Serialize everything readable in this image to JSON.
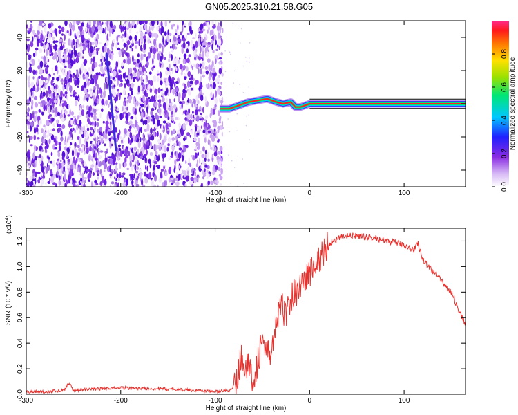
{
  "title": "GN05.2025.310.21.58.G05",
  "colors": {
    "snr_line": "#e8302c",
    "frame": "#000000",
    "background": "#ffffff"
  },
  "chart_data": [
    {
      "type": "heatmap",
      "xlabel": "Height of straight line (km)",
      "ylabel": "Frequency (Hz)",
      "xlim": [
        -300,
        165
      ],
      "ylim": [
        -50,
        50
      ],
      "xticks": [
        "-300",
        "-200",
        "-100",
        "0",
        "100"
      ],
      "yticks": [
        "-40",
        "-20",
        "0",
        "20",
        "40"
      ],
      "colorbar": {
        "label": "Normalized spectral amplitude",
        "range": [
          0,
          1
        ],
        "ticks": [
          "0.0",
          "0.2",
          "0.4",
          "0.6",
          "0.8"
        ],
        "colormap": "rainbow (white → violet → blue → cyan → green → yellow → red → magenta)"
      },
      "features": {
        "noise_region_x": [
          -300,
          -92
        ],
        "noise_region_y": [
          -50,
          50
        ],
        "diagonal_streak": {
          "from": [
            -215,
            30
          ],
          "to": [
            -205,
            -28
          ]
        },
        "signal_ridge_points": [
          [
            -95,
            -3
          ],
          [
            -85,
            -3
          ],
          [
            -75,
            -1
          ],
          [
            -65,
            1
          ],
          [
            -55,
            2
          ],
          [
            -45,
            3
          ],
          [
            -35,
            1
          ],
          [
            -28,
            0
          ],
          [
            -20,
            1
          ],
          [
            -15,
            -2
          ],
          [
            -10,
            -2
          ],
          [
            -5,
            -1
          ],
          [
            0,
            0
          ],
          [
            10,
            0
          ],
          [
            50,
            0
          ],
          [
            100,
            0
          ],
          [
            165,
            0
          ]
        ]
      }
    },
    {
      "type": "line",
      "xlabel": "Height of straight line (km)",
      "ylabel": "SNR (10 * v/v)",
      "multiplier_label": "(x10",
      "multiplier_exp": "4",
      "xlim": [
        -300,
        165
      ],
      "ylim": [
        0,
        1.3
      ],
      "xticks": [
        "-300",
        "-200",
        "-100",
        "0",
        "100"
      ],
      "yticks": [
        "0.0",
        "0.2",
        "0.4",
        "0.6",
        "0.8",
        "1.0",
        "1.2"
      ],
      "series": [
        {
          "x": [
            -300,
            -280,
            -260,
            -255,
            -250,
            -230,
            -200,
            -150,
            -120,
            -100,
            -85,
            -78,
            -72,
            -65,
            -60,
            -55,
            -50,
            -45,
            -40,
            -35,
            -30,
            -25,
            -20,
            -15,
            -10,
            -5,
            0,
            10,
            20,
            30,
            40,
            50,
            60,
            70,
            80,
            90,
            100,
            110,
            115,
            120,
            130,
            140,
            150,
            160,
            165
          ],
          "y": [
            0.02,
            0.02,
            0.03,
            0.09,
            0.03,
            0.04,
            0.05,
            0.04,
            0.03,
            0.02,
            0.03,
            0.08,
            0.3,
            0.2,
            0.12,
            0.25,
            0.45,
            0.3,
            0.35,
            0.55,
            0.7,
            0.62,
            0.75,
            0.8,
            0.85,
            0.9,
            0.95,
            1.05,
            1.18,
            1.22,
            1.24,
            1.24,
            1.23,
            1.22,
            1.2,
            1.19,
            1.17,
            1.13,
            1.18,
            1.05,
            0.97,
            0.88,
            0.8,
            0.62,
            0.55
          ]
        }
      ]
    }
  ]
}
